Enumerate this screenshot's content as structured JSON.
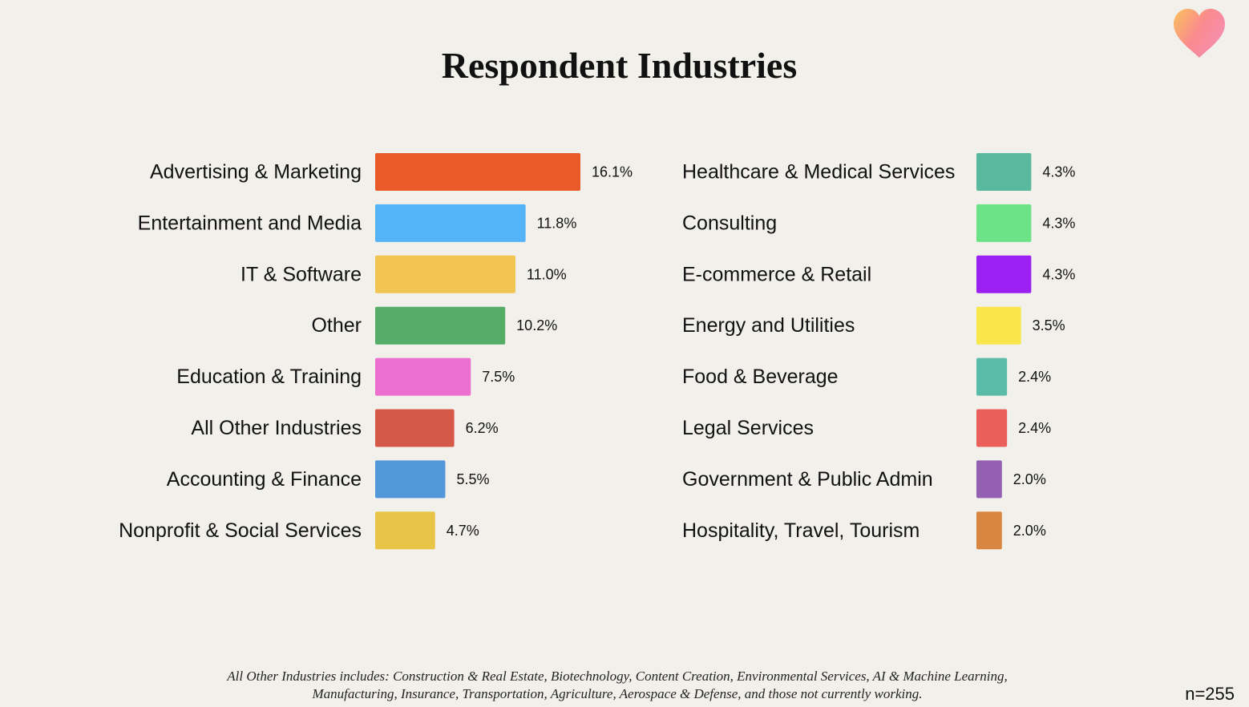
{
  "chart_data": {
    "type": "bar",
    "orientation": "horizontal",
    "title": "Respondent Industries",
    "value_suffix": "%",
    "columns": [
      {
        "categories": [
          "Advertising & Marketing",
          "Entertainment and Media",
          "IT & Software",
          "Other",
          "Education & Training",
          "All Other Industries",
          "Accounting & Finance",
          "Nonprofit & Social Services"
        ],
        "values": [
          16.1,
          11.8,
          11.0,
          10.2,
          7.5,
          6.2,
          5.5,
          4.7
        ],
        "colors": [
          "#eb5a2b",
          "#55b4f8",
          "#f2c451",
          "#54ac66",
          "#eb6fcf",
          "#d65848",
          "#5297d8",
          "#e8c546"
        ]
      },
      {
        "categories": [
          "Healthcare & Medical Services",
          "Consulting",
          "E-commerce & Retail",
          "Energy and Utilities",
          "Food & Beverage",
          "Legal Services",
          "Government & Public Admin",
          "Hospitality, Travel, Tourism"
        ],
        "values": [
          4.3,
          4.3,
          4.3,
          3.5,
          2.4,
          2.4,
          2.0,
          2.0
        ],
        "colors": [
          "#59b99f",
          "#6ce386",
          "#9a21f2",
          "#f8e64b",
          "#59bba8",
          "#ea5f5a",
          "#9560b2",
          "#d98740"
        ]
      }
    ]
  },
  "footnote": {
    "line1": "All Other Industries includes: Construction & Real Estate, Biotechnology, Content Creation, Environmental Services, AI & Machine Learning,",
    "line2": "Manufacturing, Insurance, Transportation, Agriculture, Aerospace & Defense, and those not currently working."
  },
  "sample_size": "n=255",
  "logo": {
    "icon": "heart-icon",
    "colors": [
      "#f9c25a",
      "#fa8a8f",
      "#f58fb0"
    ]
  }
}
